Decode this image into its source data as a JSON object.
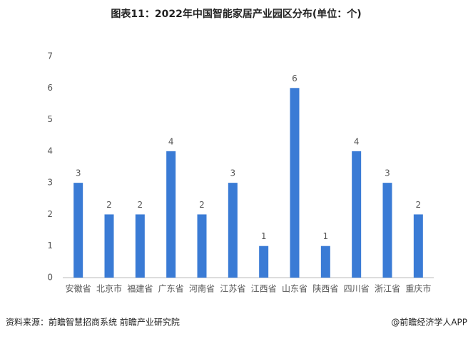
{
  "chart_data": {
    "type": "bar",
    "title": "图表11：2022年中国智能家居产业园区分布(单位：个)",
    "categories": [
      "安徽省",
      "北京市",
      "福建省",
      "广东省",
      "河南省",
      "江苏省",
      "江西省",
      "山东省",
      "陕西省",
      "四川省",
      "浙江省",
      "重庆市"
    ],
    "values": [
      3,
      2,
      2,
      4,
      2,
      3,
      1,
      6,
      1,
      4,
      3,
      2
    ],
    "color": "#3a7bd5",
    "ylim": [
      0,
      7
    ],
    "yticks": [
      0,
      1,
      2,
      3,
      4,
      5,
      6,
      7
    ],
    "grid": false,
    "source": "资料来源：前瞻智慧招商系统 前瞻产业研究院",
    "credit": "@前瞻经济学人APP"
  }
}
